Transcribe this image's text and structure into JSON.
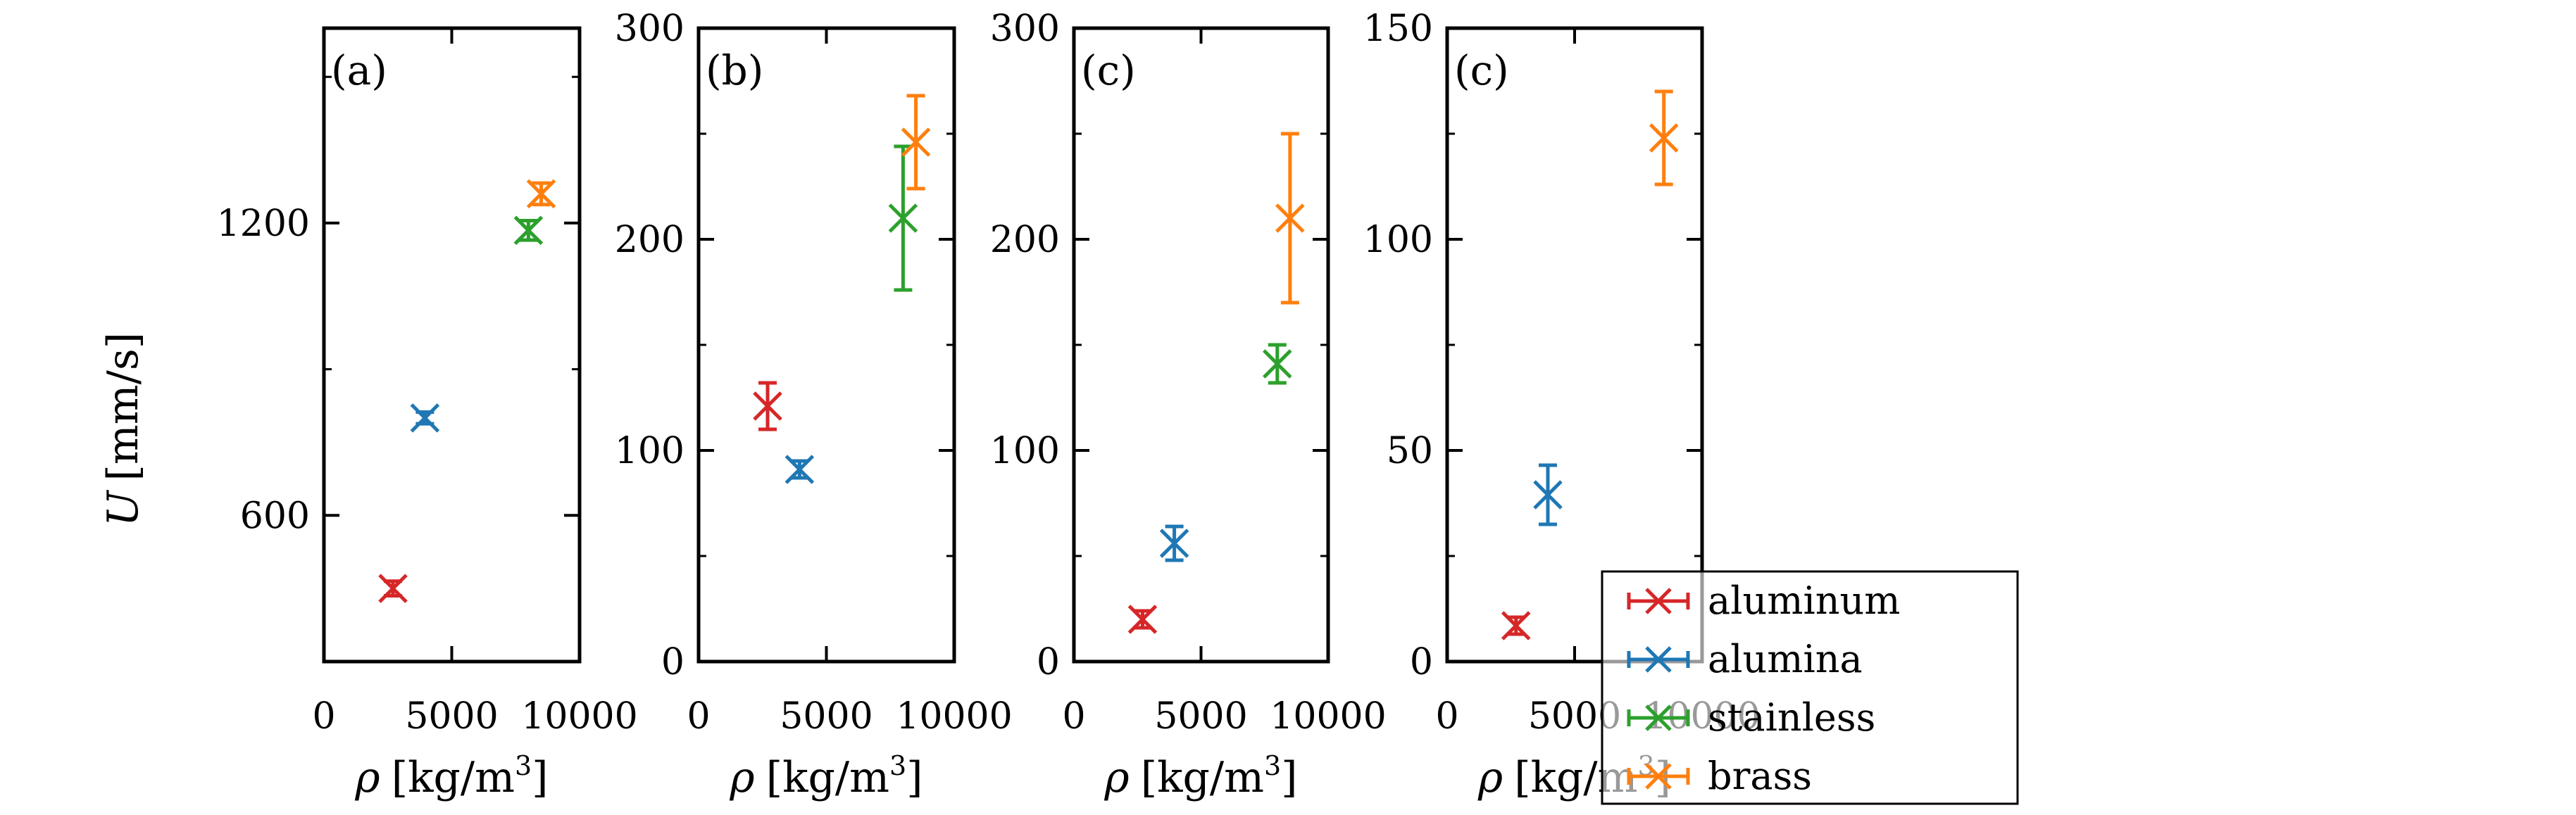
{
  "figure": {
    "ylabel_var": "U",
    "ylabel_unit": "[mm/s]",
    "xlabel_var": "ρ",
    "xlabel_unit": "[kg/m",
    "xlabel_exp": "3",
    "xlabel_close": "]"
  },
  "legend": {
    "placement": "overlapping lower-right of panel 4",
    "entries": [
      {
        "label": "aluminum",
        "color": "#d62728"
      },
      {
        "label": "alumina",
        "color": "#1f77b4"
      },
      {
        "label": "stainless",
        "color": "#2ca02c"
      },
      {
        "label": "brass",
        "color": "#ff7f0e"
      }
    ]
  },
  "chart_data": [
    {
      "type": "scatter",
      "panel_label": "(a)",
      "xlim": [
        0,
        10000
      ],
      "ylim": [
        300,
        1600
      ],
      "xticks": [
        0,
        5000,
        10000
      ],
      "xtick_labels": [
        "0",
        "5000",
        "10000"
      ],
      "yticks": [
        600,
        1200
      ],
      "ytick_labels": [
        "600",
        "1200"
      ],
      "yminor": [
        900,
        1500
      ],
      "series": [
        {
          "name": "aluminum",
          "x": 2700,
          "y": 450,
          "yerr": 15
        },
        {
          "name": "alumina",
          "x": 3950,
          "y": 800,
          "yerr": 12
        },
        {
          "name": "stainless",
          "x": 8000,
          "y": 1185,
          "yerr": 20
        },
        {
          "name": "brass",
          "x": 8500,
          "y": 1260,
          "yerr": 22
        }
      ]
    },
    {
      "type": "scatter",
      "panel_label": "(b)",
      "xlim": [
        0,
        10000
      ],
      "ylim": [
        0,
        300
      ],
      "xticks": [
        0,
        5000,
        10000
      ],
      "xtick_labels": [
        "0",
        "5000",
        "10000"
      ],
      "yticks": [
        0,
        100,
        200,
        300
      ],
      "ytick_labels": [
        "0",
        "100",
        "200",
        "300"
      ],
      "yminor": [
        50,
        150,
        250
      ],
      "series": [
        {
          "name": "aluminum",
          "x": 2700,
          "y": 121,
          "yerr": 11
        },
        {
          "name": "alumina",
          "x": 3950,
          "y": 91,
          "yerr": 4
        },
        {
          "name": "stainless",
          "x": 8000,
          "y": 210,
          "yerr": 34
        },
        {
          "name": "brass",
          "x": 8500,
          "y": 246,
          "yerr": 22
        }
      ]
    },
    {
      "type": "scatter",
      "panel_label": "(c)",
      "xlim": [
        0,
        10000
      ],
      "ylim": [
        0,
        300
      ],
      "xticks": [
        0,
        5000,
        10000
      ],
      "xtick_labels": [
        "0",
        "5000",
        "10000"
      ],
      "yticks": [
        0,
        100,
        200,
        300
      ],
      "ytick_labels": [
        "0",
        "100",
        "200",
        "300"
      ],
      "yminor": [
        50,
        150,
        250
      ],
      "series": [
        {
          "name": "aluminum",
          "x": 2700,
          "y": 20,
          "yerr": 4
        },
        {
          "name": "alumina",
          "x": 3950,
          "y": 56,
          "yerr": 8
        },
        {
          "name": "stainless",
          "x": 8000,
          "y": 141,
          "yerr": 9
        },
        {
          "name": "brass",
          "x": 8500,
          "y": 210,
          "yerr": 40
        }
      ]
    },
    {
      "type": "scatter",
      "panel_label": "(c)",
      "xlim": [
        0,
        10000
      ],
      "ylim": [
        0,
        150
      ],
      "xticks": [
        0,
        5000,
        10000
      ],
      "xtick_labels": [
        "0",
        "5000",
        "10000"
      ],
      "yticks": [
        0,
        50,
        100,
        150
      ],
      "ytick_labels": [
        "0",
        "50",
        "100",
        "150"
      ],
      "yminor": [
        25,
        75,
        125
      ],
      "series": [
        {
          "name": "aluminum",
          "x": 2700,
          "y": 8.5,
          "yerr": 2
        },
        {
          "name": "alumina",
          "x": 3950,
          "y": 39.5,
          "yerr": 7
        },
        {
          "name": "stainless",
          "x": 8000,
          "y": null,
          "yerr": null
        },
        {
          "name": "brass",
          "x": 8500,
          "y": 124,
          "yerr": 11
        }
      ]
    }
  ]
}
